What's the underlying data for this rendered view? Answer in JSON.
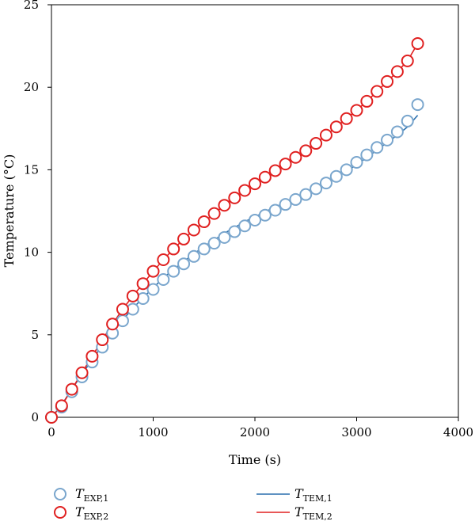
{
  "chart_data": {
    "type": "scatter",
    "xlabel": "Time (s)",
    "ylabel": "Temperature (°C)",
    "xlim": [
      0,
      4000
    ],
    "ylim": [
      0,
      25
    ],
    "xticks": [
      0,
      1000,
      2000,
      3000,
      4000
    ],
    "yticks": [
      0,
      5,
      10,
      15,
      20,
      25
    ],
    "grid": false,
    "legend": "bottom",
    "series": [
      {
        "name_main": "T",
        "name_sub": "EXP,1",
        "kind": "markers",
        "color": "#7aa6cd",
        "x": [
          0,
          100,
          200,
          300,
          400,
          500,
          600,
          700,
          800,
          900,
          1000,
          1100,
          1200,
          1300,
          1400,
          1500,
          1600,
          1700,
          1800,
          1900,
          2000,
          2100,
          2200,
          2300,
          2400,
          2500,
          2600,
          2700,
          2800,
          2900,
          3000,
          3100,
          3200,
          3300,
          3400,
          3500,
          3600
        ],
        "values": [
          0,
          0.62,
          1.55,
          2.45,
          3.35,
          4.25,
          5.1,
          5.85,
          6.55,
          7.2,
          7.75,
          8.35,
          8.85,
          9.3,
          9.75,
          10.2,
          10.55,
          10.9,
          11.25,
          11.6,
          11.95,
          12.25,
          12.55,
          12.9,
          13.2,
          13.5,
          13.85,
          14.2,
          14.6,
          15.0,
          15.45,
          15.9,
          16.35,
          16.8,
          17.3,
          17.95,
          18.95
        ]
      },
      {
        "name_main": "T",
        "name_sub": "EXP,2",
        "kind": "markers",
        "color": "#e02020",
        "x": [
          0,
          100,
          200,
          300,
          400,
          500,
          600,
          700,
          800,
          900,
          1000,
          1100,
          1200,
          1300,
          1400,
          1500,
          1600,
          1700,
          1800,
          1900,
          2000,
          2100,
          2200,
          2300,
          2400,
          2500,
          2600,
          2700,
          2800,
          2900,
          3000,
          3100,
          3200,
          3300,
          3400,
          3500,
          3600
        ],
        "values": [
          0,
          0.7,
          1.7,
          2.7,
          3.7,
          4.7,
          5.65,
          6.55,
          7.35,
          8.1,
          8.85,
          9.55,
          10.2,
          10.8,
          11.35,
          11.85,
          12.35,
          12.85,
          13.3,
          13.75,
          14.15,
          14.55,
          14.95,
          15.35,
          15.75,
          16.15,
          16.6,
          17.1,
          17.6,
          18.1,
          18.6,
          19.15,
          19.75,
          20.35,
          20.95,
          21.6,
          22.65
        ]
      },
      {
        "name_main": "T",
        "name_sub": "TEM,1",
        "kind": "line",
        "color": "#2a6fad",
        "x": [
          0,
          100,
          200,
          300,
          400,
          500,
          600,
          700,
          800,
          900,
          1000,
          1100,
          1200,
          1300,
          1400,
          1500,
          1600,
          1700,
          1800,
          1900,
          2000,
          2100,
          2200,
          2300,
          2400,
          2500,
          2600,
          2700,
          2800,
          2900,
          3000,
          3100,
          3200,
          3300,
          3400,
          3500,
          3600
        ],
        "values": [
          0,
          0.75,
          1.7,
          2.6,
          3.5,
          4.35,
          5.15,
          5.9,
          6.6,
          7.25,
          7.85,
          8.45,
          8.95,
          9.45,
          9.9,
          10.35,
          10.75,
          11.15,
          11.5,
          11.85,
          12.15,
          12.45,
          12.75,
          13.0,
          13.3,
          13.55,
          13.85,
          14.2,
          14.55,
          14.9,
          15.3,
          15.75,
          16.2,
          16.65,
          17.1,
          17.6,
          18.3
        ]
      },
      {
        "name_main": "T",
        "name_sub": "TEM,2",
        "kind": "line",
        "color": "#e02020",
        "x": [
          0,
          100,
          200,
          300,
          400,
          500,
          600,
          700,
          800,
          900,
          1000,
          1100,
          1200,
          1300,
          1400,
          1500,
          1600,
          1700,
          1800,
          1900,
          2000,
          2100,
          2200,
          2300,
          2400,
          2500,
          2600,
          2700,
          2800,
          2900,
          3000,
          3100,
          3200,
          3300,
          3400,
          3500,
          3600
        ],
        "values": [
          0,
          0.7,
          1.7,
          2.7,
          3.7,
          4.7,
          5.65,
          6.55,
          7.35,
          8.1,
          8.85,
          9.55,
          10.2,
          10.8,
          11.35,
          11.85,
          12.35,
          12.85,
          13.3,
          13.75,
          14.15,
          14.55,
          14.95,
          15.35,
          15.75,
          16.15,
          16.6,
          17.1,
          17.6,
          18.1,
          18.6,
          19.15,
          19.75,
          20.35,
          20.95,
          21.6,
          22.65
        ]
      }
    ]
  }
}
